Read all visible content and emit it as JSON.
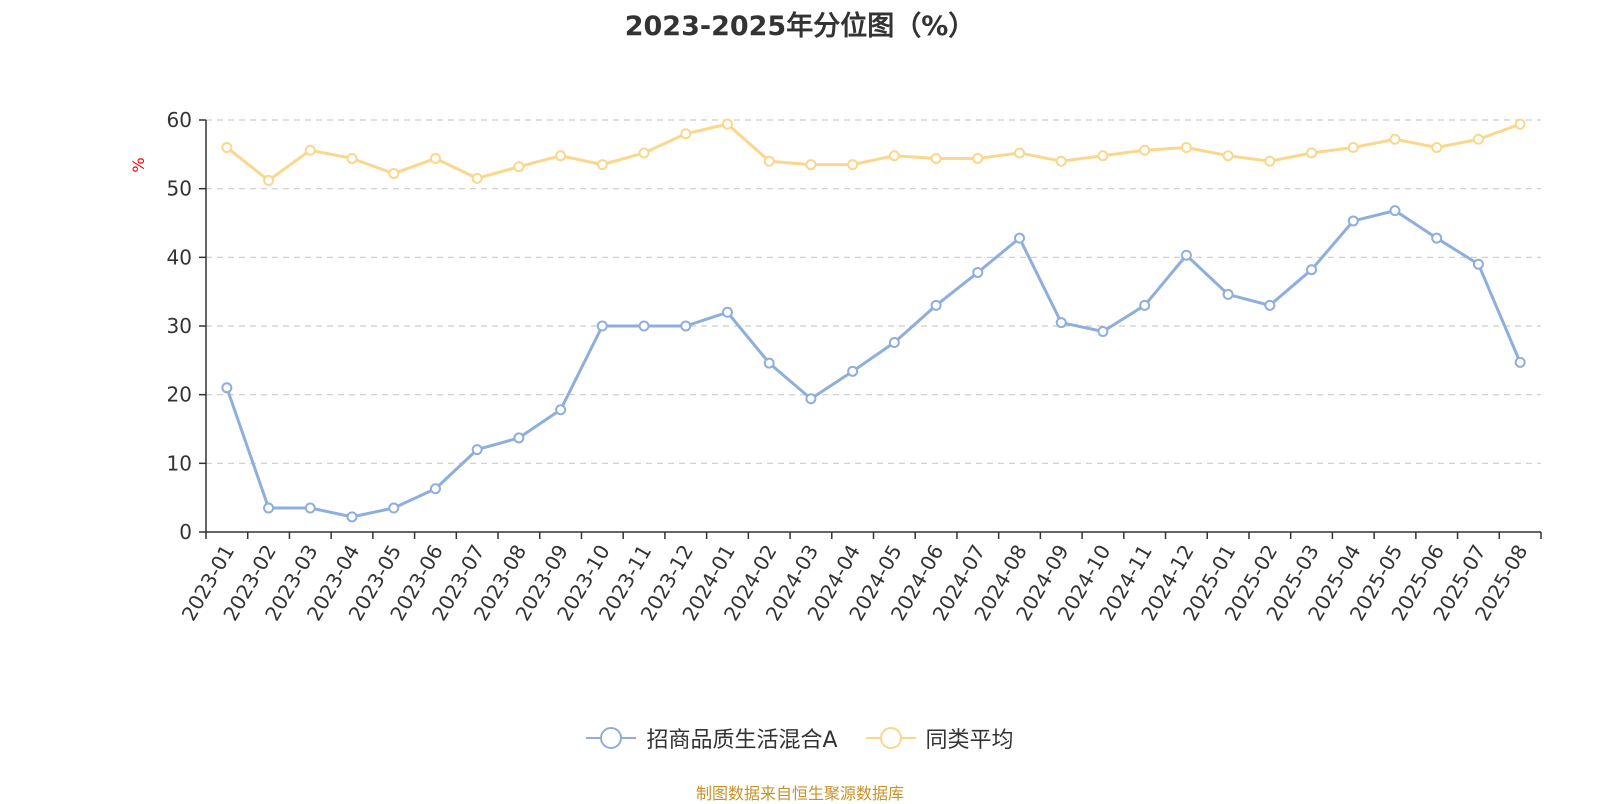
{
  "title": "2023-2025年分位图（%）",
  "source": "制图数据来自恒生聚源数据库",
  "colors": {
    "fund": "#8eaedc",
    "avg": "#fbd78d",
    "grid": "#cccccc",
    "axis": "#333333",
    "unit": "#ff0000",
    "source": "#c8922a"
  },
  "chart_data": {
    "type": "line",
    "title": "2023-2025年分位图（%）",
    "ylabel": "%",
    "xlabel": "",
    "ylim": [
      0,
      60
    ],
    "yticks": [
      0,
      10,
      20,
      30,
      40,
      50,
      60
    ],
    "grid": true,
    "legend_position": "bottom-center",
    "categories": [
      "2023-01",
      "2023-02",
      "2023-03",
      "2023-04",
      "2023-05",
      "2023-06",
      "2023-07",
      "2023-08",
      "2023-09",
      "2023-10",
      "2023-11",
      "2023-12",
      "2024-01",
      "2024-02",
      "2024-03",
      "2024-04",
      "2024-05",
      "2024-06",
      "2024-07",
      "2024-08",
      "2024-09",
      "2024-10",
      "2024-11",
      "2024-12",
      "2025-01",
      "2025-02",
      "2025-03",
      "2025-04",
      "2025-05",
      "2025-06",
      "2025-07",
      "2025-08"
    ],
    "series": [
      {
        "name": "招商品质生活混合A",
        "color": "#8eaedc",
        "values": [
          21,
          3.5,
          3.5,
          2.2,
          3.5,
          6.3,
          12,
          13.7,
          17.8,
          30,
          30,
          30,
          32,
          24.6,
          19.4,
          23.4,
          27.6,
          33,
          37.8,
          42.8,
          30.5,
          29.2,
          33,
          40.3,
          34.6,
          33,
          38.2,
          45.3,
          46.8,
          42.8,
          39,
          24.7
        ]
      },
      {
        "name": "同类平均",
        "color": "#fbd78d",
        "values": [
          56,
          51.2,
          55.6,
          54.4,
          52.2,
          54.4,
          51.5,
          53.2,
          54.8,
          53.5,
          55.2,
          58,
          59.4,
          54,
          53.5,
          53.5,
          54.8,
          54.4,
          54.4,
          55.2,
          54,
          54.8,
          55.6,
          56,
          54.8,
          54,
          55.2,
          56,
          57.2,
          56,
          57.2,
          59.4
        ]
      }
    ]
  }
}
